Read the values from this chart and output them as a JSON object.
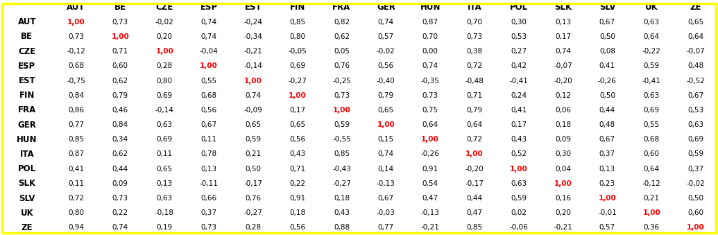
{
  "col_headers": [
    "",
    "AUT",
    "BE",
    "CZE",
    "ESP",
    "EST",
    "FIN",
    "FRA",
    "GER",
    "HUN",
    "ITA",
    "POL",
    "SLK",
    "SLV",
    "UK",
    "ZE"
  ],
  "row_headers": [
    "AUT",
    "BE",
    "CZE",
    "ESP",
    "EST",
    "FIN",
    "FRA",
    "GER",
    "HUN",
    "ITA",
    "POL",
    "SLK",
    "SLV",
    "UK",
    "ZE"
  ],
  "data": [
    [
      "1,00",
      "0,73",
      "-0,02",
      "0,74",
      "-0,24",
      "0,85",
      "0,82",
      "0,74",
      "0,87",
      "0,70",
      "0,30",
      "0,13",
      "0,67",
      "0,63",
      "0,65"
    ],
    [
      "0,73",
      "1,00",
      "0,20",
      "0,74",
      "-0,34",
      "0,80",
      "0,62",
      "0,57",
      "0,70",
      "0,73",
      "0,53",
      "0,17",
      "0,50",
      "0,64",
      "0,64"
    ],
    [
      "-0,12",
      "0,71",
      "1,00",
      "-0,04",
      "-0,21",
      "-0,05",
      "0,05",
      "-0,02",
      "0,00",
      "0,38",
      "0,27",
      "0,74",
      "0,08",
      "-0,22",
      "-0,07"
    ],
    [
      "0,68",
      "0,60",
      "0,28",
      "1,00",
      "-0,14",
      "0,69",
      "0,76",
      "0,56",
      "0,74",
      "0,72",
      "0,42",
      "-0,07",
      "0,41",
      "0,59",
      "0,48"
    ],
    [
      "-0,75",
      "0,62",
      "0,80",
      "0,55",
      "1,00",
      "-0,27",
      "-0,25",
      "-0,40",
      "-0,35",
      "-0,48",
      "-0,41",
      "-0,20",
      "-0,26",
      "-0,41",
      "-0,52"
    ],
    [
      "0,84",
      "0,79",
      "0,69",
      "0,68",
      "0,74",
      "1,00",
      "0,73",
      "0,79",
      "0,73",
      "0,71",
      "0,24",
      "0,12",
      "0,50",
      "0,63",
      "0,67"
    ],
    [
      "0,86",
      "0,46",
      "-0,14",
      "0,56",
      "-0,09",
      "0,17",
      "1,00",
      "0,65",
      "0,75",
      "0,79",
      "0,41",
      "0,06",
      "0,44",
      "0,69",
      "0,53"
    ],
    [
      "0,77",
      "0,84",
      "0,63",
      "0,67",
      "0,65",
      "0,65",
      "0,59",
      "1,00",
      "0,64",
      "0,64",
      "0,17",
      "0,18",
      "0,48",
      "0,55",
      "0,63"
    ],
    [
      "0,85",
      "0,34",
      "0,69",
      "0,11",
      "0,59",
      "0,56",
      "-0,55",
      "0,15",
      "1,00",
      "0,72",
      "0,43",
      "0,09",
      "0,67",
      "0,68",
      "0,69"
    ],
    [
      "0,87",
      "0,62",
      "0,11",
      "0,78",
      "0,21",
      "0,43",
      "0,85",
      "0,74",
      "-0,26",
      "1,00",
      "0,52",
      "0,30",
      "0,37",
      "0,60",
      "0,59"
    ],
    [
      "0,41",
      "0,44",
      "0,65",
      "0,13",
      "0,50",
      "0,71",
      "-0,43",
      "0,14",
      "0,91",
      "-0,20",
      "1,00",
      "0,04",
      "0,13",
      "0,64",
      "0,37"
    ],
    [
      "0,11",
      "0,09",
      "0,13",
      "-0,11",
      "-0,17",
      "0,22",
      "-0,27",
      "-0,13",
      "0,54",
      "-0,17",
      "0,63",
      "1,00",
      "0,23",
      "-0,12",
      "-0,02"
    ],
    [
      "0,72",
      "0,73",
      "0,63",
      "0,66",
      "0,76",
      "0,91",
      "0,18",
      "0,67",
      "0,47",
      "0,44",
      "0,59",
      "0,16",
      "1,00",
      "0,21",
      "0,50"
    ],
    [
      "0,80",
      "0,22",
      "-0,18",
      "0,37",
      "-0,27",
      "0,18",
      "0,43",
      "-0,03",
      "-0,13",
      "0,47",
      "0,02",
      "0,20",
      "-0,01",
      "1,00",
      "0,60"
    ],
    [
      "0,94",
      "0,74",
      "0,19",
      "0,73",
      "0,28",
      "0,56",
      "0,88",
      "0,77",
      "-0,21",
      "0,85",
      "-0,06",
      "-0,21",
      "0,57",
      "0,36",
      "1,00"
    ]
  ],
  "bg_color": "#FFFFFF",
  "border_color": "#FFFF00",
  "normal_color": "#000000",
  "diagonal_color": "#FF0000",
  "cell_font_size": 7.5,
  "header_font_size": 8.5
}
